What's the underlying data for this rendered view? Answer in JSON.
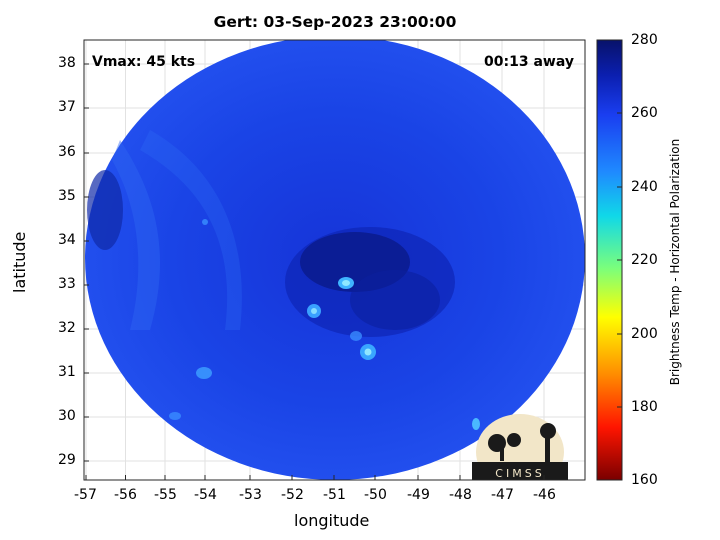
{
  "title": "Gert: 03-Sep-2023 23:00:00",
  "vmax_label": "Vmax: 45 kts",
  "away_label": "00:13 away",
  "map": {
    "xlabel": "longitude",
    "ylabel": "latitude",
    "lon_ticks": [
      "-57",
      "-56",
      "-55",
      "-54",
      "-53",
      "-52",
      "-51",
      "-50",
      "-49",
      "-48",
      "-47",
      "-46"
    ],
    "lat_ticks": [
      "29",
      "30",
      "31",
      "32",
      "33",
      "34",
      "35",
      "36",
      "37",
      "38"
    ],
    "lon_range": [
      -57.3,
      -45.2
    ],
    "lat_range": [
      28.6,
      38.5
    ],
    "grid": true,
    "swath": "circular"
  },
  "colorbar": {
    "label": "Brightness Temp - Horizontal Polarization",
    "ticks": [
      "280",
      "260",
      "240",
      "220",
      "200",
      "180",
      "160"
    ],
    "range": [
      160,
      280
    ],
    "colormap": "jet-reversed",
    "colors": [
      "#0a0f6e",
      "#1a3ef0",
      "#1f8aff",
      "#10d8e8",
      "#7cff7a",
      "#ffff00",
      "#ff8c00",
      "#ff1500",
      "#7a0000"
    ]
  },
  "logo": {
    "text": "CIMSS"
  }
}
